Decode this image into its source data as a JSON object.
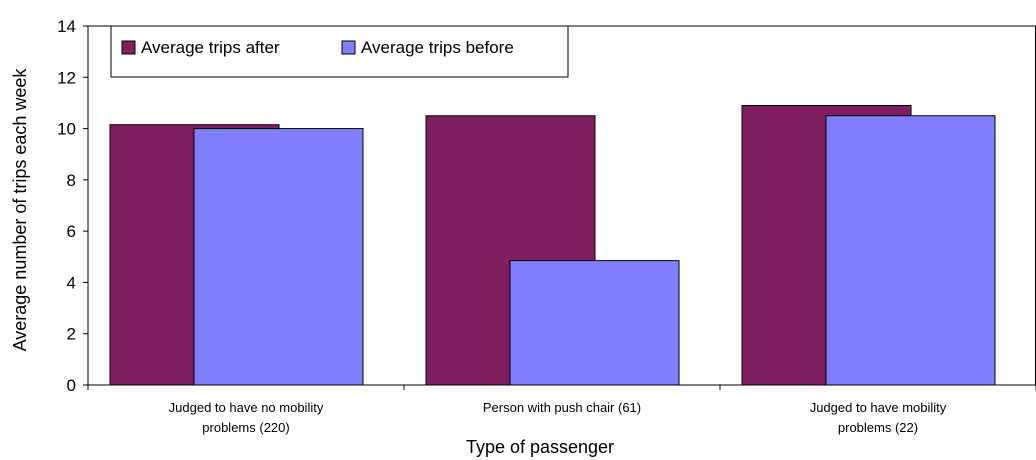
{
  "chart_data": {
    "type": "bar",
    "categories": [
      [
        "Judged to have no mobility",
        "problems (220)"
      ],
      [
        "Person with push chair (61)"
      ],
      [
        "Judged to have mobility",
        "problems (22)"
      ]
    ],
    "series": [
      {
        "name": "Average trips after",
        "color": "#7f1f5f",
        "values": [
          10.15,
          10.5,
          10.9
        ]
      },
      {
        "name": "Average trips before",
        "color": "#8080ff",
        "values": [
          10.0,
          4.85,
          10.5
        ]
      }
    ],
    "title": "",
    "xlabel": "Type of passenger",
    "ylabel": "Average number of trips each week",
    "ylim": [
      0,
      14
    ],
    "yticks": [
      0,
      2,
      4,
      6,
      8,
      10,
      12,
      14
    ],
    "grid": false,
    "legend_position": "top-left"
  }
}
